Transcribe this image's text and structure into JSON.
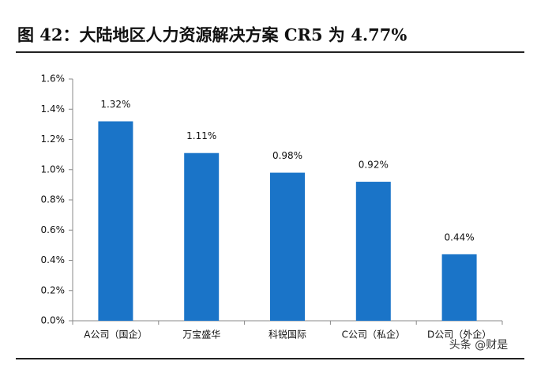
{
  "chart_data": {
    "type": "bar",
    "title": "图 42：大陆地区人力资源解决方案 CR5 为 4.77%",
    "categories": [
      "A公司（国企）",
      "万宝盛华",
      "科锐国际",
      "C公司（私企）",
      "D公司（外企）"
    ],
    "values": [
      1.32,
      1.11,
      0.98,
      0.92,
      0.44
    ],
    "value_labels": [
      "1.32%",
      "1.11%",
      "0.98%",
      "0.92%",
      "0.44%"
    ],
    "color": "#1a74c8",
    "ylim": [
      0,
      1.6
    ],
    "yticks": [
      {
        "value": 0,
        "label": "0.0%"
      },
      {
        "value": 0.2,
        "label": "0.2%"
      },
      {
        "value": 0.4,
        "label": "0.4%"
      },
      {
        "value": 0.6,
        "label": "0.6%"
      },
      {
        "value": 0.8,
        "label": "0.8%"
      },
      {
        "value": 1.0,
        "label": "1.0%"
      },
      {
        "value": 1.2,
        "label": "1.2%"
      },
      {
        "value": 1.4,
        "label": "1.4%"
      },
      {
        "value": 1.6,
        "label": "1.6%"
      }
    ],
    "grid": false,
    "watermark": "头条 @财是"
  }
}
